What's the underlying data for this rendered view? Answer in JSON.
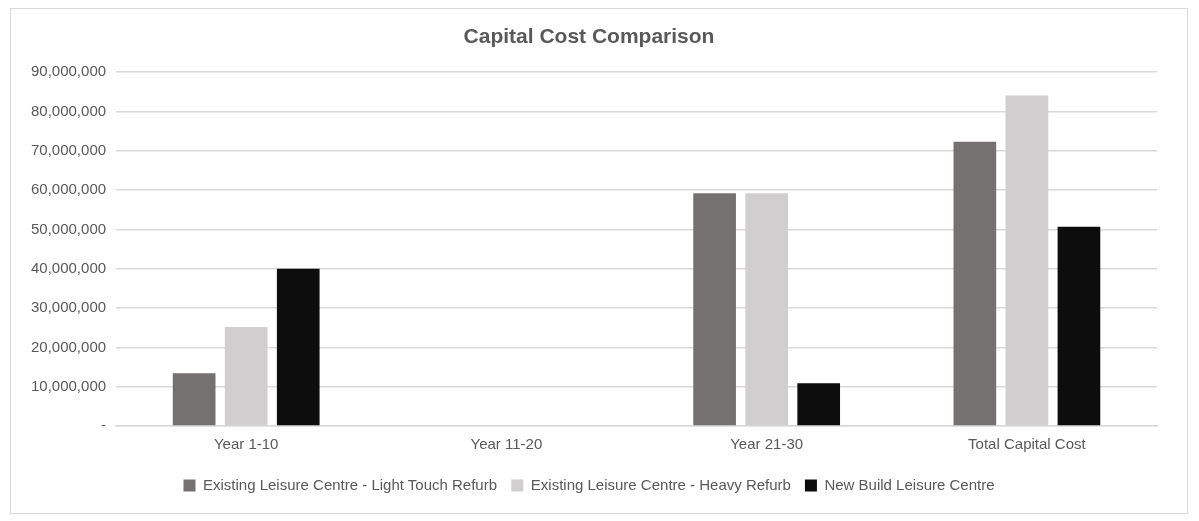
{
  "chart_data": {
    "type": "bar",
    "title": "Capital Cost Comparison",
    "categories": [
      "Year 1-10",
      "Year 11-20",
      "Year 21-30",
      "Total Capital Cost"
    ],
    "series": [
      {
        "name": "Existing Leisure Centre - Light Touch Refurb",
        "color": "#767171",
        "values": [
          13400000,
          0,
          59200000,
          72300000
        ]
      },
      {
        "name": "Existing Leisure Centre - Heavy Refurb",
        "color": "#d0cece",
        "values": [
          25200000,
          0,
          59200000,
          84100000
        ]
      },
      {
        "name": "New Build Leisure Centre",
        "color": "#0d0d0d",
        "values": [
          40000000,
          0,
          10900000,
          50700000
        ]
      }
    ],
    "ylim": [
      0,
      90000000
    ],
    "yticks": [
      {
        "value": 0,
        "label": "-"
      },
      {
        "value": 10000000,
        "label": "10,000,000"
      },
      {
        "value": 20000000,
        "label": "20,000,000"
      },
      {
        "value": 30000000,
        "label": "30,000,000"
      },
      {
        "value": 40000000,
        "label": "40,000,000"
      },
      {
        "value": 50000000,
        "label": "50,000,000"
      },
      {
        "value": 60000000,
        "label": "60,000,000"
      },
      {
        "value": 70000000,
        "label": "70,000,000"
      },
      {
        "value": 80000000,
        "label": "80,000,000"
      },
      {
        "value": 90000000,
        "label": "90,000,000"
      }
    ],
    "grid": "y",
    "legend": "bottom"
  }
}
